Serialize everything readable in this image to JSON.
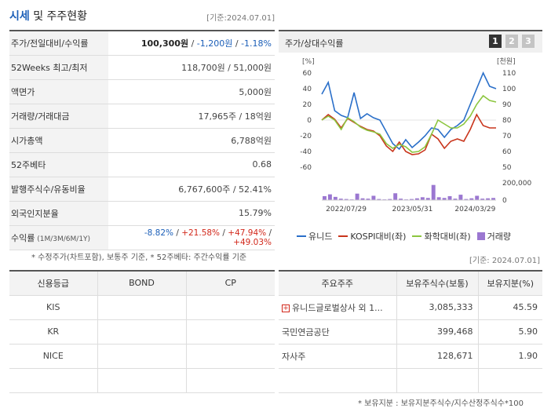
{
  "header": {
    "title_part1": "시세",
    "title_part2": " 및 주주현황",
    "date": "[기준:2024.07.01]"
  },
  "price_table": {
    "rows": [
      {
        "label": "주가/전일대비/수익률"
      },
      {
        "label": "52Weeks 최고/최저",
        "value": "118,700원 / 51,000원"
      },
      {
        "label": "액면가",
        "value": "5,000원"
      },
      {
        "label": "거래량/거래대금",
        "value": "17,965주 / 18억원"
      },
      {
        "label": "시가총액",
        "value": "6,788억원"
      },
      {
        "label": "52주베타",
        "value": "0.68"
      },
      {
        "label": "발행주식수/유동비율",
        "value": "6,767,600주 / 52.41%"
      },
      {
        "label": "외국인지분율",
        "value": "15.79%"
      },
      {
        "label": "수익률",
        "label_sub": " (1M/3M/6M/1Y)"
      }
    ],
    "price": "100,300원",
    "sep": " / ",
    "change": "-1,200원",
    "rate": "-1.18%",
    "returns": [
      "-8.82%",
      "+21.58%",
      "+47.94%",
      "+49.03%"
    ],
    "note": "* 수정주가(차트포함), 보통주 기준, * 52주베타: 주간수익률 기준"
  },
  "chart_panel": {
    "title": "주가/상대수익률",
    "pages": [
      "1",
      "2",
      "3"
    ],
    "active_page": 0
  },
  "chart_data": {
    "type": "line",
    "x_ticks": [
      "2022/07/29",
      "2023/05/31",
      "2024/03/29"
    ],
    "left_axis": {
      "unit": "[%]",
      "ticks": [
        "60",
        "40",
        "20",
        "0",
        "-20",
        "-40",
        "-60"
      ],
      "range": [
        -60,
        60
      ]
    },
    "right_axis": {
      "unit": "[천원]",
      "ticks": [
        "110",
        "100",
        "90",
        "80",
        "70",
        "60",
        "50"
      ],
      "range": [
        50,
        110
      ]
    },
    "volume_axis": {
      "ticks": [
        "200,000",
        "0"
      ],
      "range": [
        0,
        250000
      ]
    },
    "series": [
      {
        "name": "유니드",
        "color": "#2a6fc9",
        "axis": "left",
        "values": [
          33,
          48,
          12,
          6,
          3,
          35,
          2,
          8,
          3,
          0,
          -15,
          -30,
          -37,
          -25,
          -35,
          -28,
          -20,
          -10,
          -12,
          -22,
          -12,
          -7,
          0,
          20,
          40,
          60,
          43,
          40
        ]
      },
      {
        "name": "KOSPI대비(좌)",
        "color": "#c9351c",
        "axis": "left",
        "values": [
          0,
          7,
          1,
          -10,
          2,
          -3,
          -8,
          -12,
          -14,
          -20,
          -33,
          -40,
          -28,
          -40,
          -44,
          -43,
          -38,
          -18,
          -24,
          -36,
          -27,
          -24,
          -27,
          -12,
          7,
          -7,
          -10,
          -10
        ]
      },
      {
        "name": "화학대비(좌)",
        "color": "#8cc63f",
        "axis": "left",
        "values": [
          0,
          5,
          0,
          -12,
          3,
          -2,
          -9,
          -13,
          -15,
          -18,
          -30,
          -36,
          -31,
          -34,
          -41,
          -40,
          -34,
          -18,
          0,
          -5,
          -10,
          -10,
          -5,
          5,
          20,
          31,
          25,
          23
        ]
      }
    ],
    "volume": {
      "name": "거래량",
      "color": "#9b77d1",
      "values": [
        55000,
        80000,
        45000,
        20000,
        15000,
        10000,
        90000,
        25000,
        20000,
        60000,
        15000,
        10000,
        15000,
        95000,
        20000,
        10000,
        15000,
        25000,
        40000,
        30000,
        210000,
        40000,
        30000,
        55000,
        20000,
        75000,
        15000,
        25000,
        60000,
        20000,
        25000,
        30000
      ]
    },
    "legend_position": "bottom"
  },
  "legend": {
    "items": [
      {
        "label": "유니드",
        "color": "#2a6fc9",
        "kind": "line"
      },
      {
        "label": "KOSPI대비(좌)",
        "color": "#c9351c",
        "kind": "line"
      },
      {
        "label": "화학대비(좌)",
        "color": "#8cc63f",
        "kind": "line"
      },
      {
        "label": "거래량",
        "color": "#9b77d1",
        "kind": "square"
      }
    ]
  },
  "date2": "[기준: 2024.07.01]",
  "credit_table": {
    "headers": [
      "신용등급",
      "BOND",
      "CP"
    ],
    "rows": [
      [
        "KIS",
        "",
        ""
      ],
      [
        "KR",
        "",
        ""
      ],
      [
        "NICE",
        "",
        ""
      ],
      [
        "",
        "",
        ""
      ]
    ]
  },
  "holders_table": {
    "headers": [
      "주요주주",
      "보유주식수(보통)",
      "보유지분(%)"
    ],
    "rows": [
      {
        "name": "유니드글로벌상사 외 1...",
        "shares": "3,085,333",
        "pct": "45.59",
        "expandable": true
      },
      {
        "name": "국민연금공단",
        "shares": "399,468",
        "pct": "5.90",
        "expandable": false
      },
      {
        "name": "자사주",
        "shares": "128,671",
        "pct": "1.90",
        "expandable": false
      },
      {
        "name": "",
        "shares": "",
        "pct": "",
        "expandable": false
      }
    ],
    "note": "* 보유지분 : 보유지분주식수/지수산정주식수*100"
  }
}
